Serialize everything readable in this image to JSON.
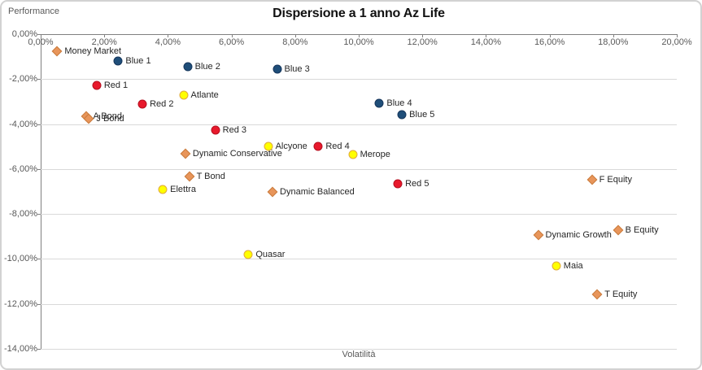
{
  "chart": {
    "title": "Dispersione a 1 anno Az Life",
    "y_axis_title": "Performance",
    "x_axis_title": "Volatilità",
    "x_tick_labels": [
      "0,00%",
      "2,00%",
      "4,00%",
      "6,00%",
      "8,00%",
      "10,00%",
      "12,00%",
      "14,00%",
      "16,00%",
      "18,00%",
      "20,00%"
    ],
    "y_tick_labels": [
      "0,00%",
      "-2,00%",
      "-4,00%",
      "-6,00%",
      "-8,00%",
      "-10,00%",
      "-12,00%",
      "-14,00%"
    ],
    "colors": {
      "gridline": "#d9d9d9",
      "axis": "#808080",
      "tick_text": "#595959",
      "label_text": "#262626"
    }
  },
  "chart_data": {
    "type": "scatter",
    "title": "Dispersione a 1 anno Az Life",
    "xlabel": "Volatilità",
    "ylabel": "Performance",
    "xlim": [
      0,
      20
    ],
    "ylim": [
      -14,
      0
    ],
    "x_tick_step_pct": 2,
    "y_tick_step_pct": 2,
    "grid": "horizontal-only",
    "legend": "none",
    "series": [
      {
        "name": "orange-diamond-funds",
        "marker": "diamond",
        "fill": "#e8955a",
        "border": "#c87b3c",
        "points": [
          {
            "label": "Money Market",
            "x": 0.52,
            "y": -0.75
          },
          {
            "label": "A Bond",
            "x": 1.42,
            "y": -3.66
          },
          {
            "label": "J Bond",
            "x": 1.52,
            "y": -3.76
          },
          {
            "label": "Dynamic Conservative",
            "x": 4.55,
            "y": -5.31
          },
          {
            "label": "T Bond",
            "x": 4.67,
            "y": -6.33
          },
          {
            "label": "Dynamic Balanced",
            "x": 7.29,
            "y": -7.01
          },
          {
            "label": "Dynamic Growth",
            "x": 15.64,
            "y": -8.94
          },
          {
            "label": "F Equity",
            "x": 17.33,
            "y": -6.48
          },
          {
            "label": "B Equity",
            "x": 18.15,
            "y": -8.73
          },
          {
            "label": "T Equity",
            "x": 17.5,
            "y": -11.56
          }
        ]
      },
      {
        "name": "blue-funds",
        "marker": "circle",
        "fill": "#1f4e79",
        "border": "#16365c",
        "points": [
          {
            "label": "Blue 1",
            "x": 2.44,
            "y": -1.21
          },
          {
            "label": "Blue 2",
            "x": 4.62,
            "y": -1.46
          },
          {
            "label": "Blue 3",
            "x": 7.43,
            "y": -1.54
          },
          {
            "label": "Blue 4",
            "x": 10.65,
            "y": -3.09
          },
          {
            "label": "Blue 5",
            "x": 11.36,
            "y": -3.59
          }
        ]
      },
      {
        "name": "red-funds",
        "marker": "circle",
        "fill": "#e8192c",
        "border": "#b50f1f",
        "points": [
          {
            "label": "Red 1",
            "x": 1.76,
            "y": -2.29
          },
          {
            "label": "Red 2",
            "x": 3.2,
            "y": -3.11
          },
          {
            "label": "Red 3",
            "x": 5.49,
            "y": -4.26
          },
          {
            "label": "Red 4",
            "x": 8.73,
            "y": -4.99
          },
          {
            "label": "Red 5",
            "x": 11.23,
            "y": -6.64
          }
        ]
      },
      {
        "name": "yellow-funds",
        "marker": "circle",
        "fill": "#ffff00",
        "border": "#e0a83c",
        "points": [
          {
            "label": "Atlante",
            "x": 4.49,
            "y": -2.71
          },
          {
            "label": "Alcyone",
            "x": 7.15,
            "y": -4.98
          },
          {
            "label": "Merope",
            "x": 9.81,
            "y": -5.37
          },
          {
            "label": "Elettra",
            "x": 3.84,
            "y": -6.9
          },
          {
            "label": "Quasar",
            "x": 6.53,
            "y": -9.81
          },
          {
            "label": "Maia",
            "x": 16.21,
            "y": -10.3
          }
        ]
      }
    ]
  }
}
